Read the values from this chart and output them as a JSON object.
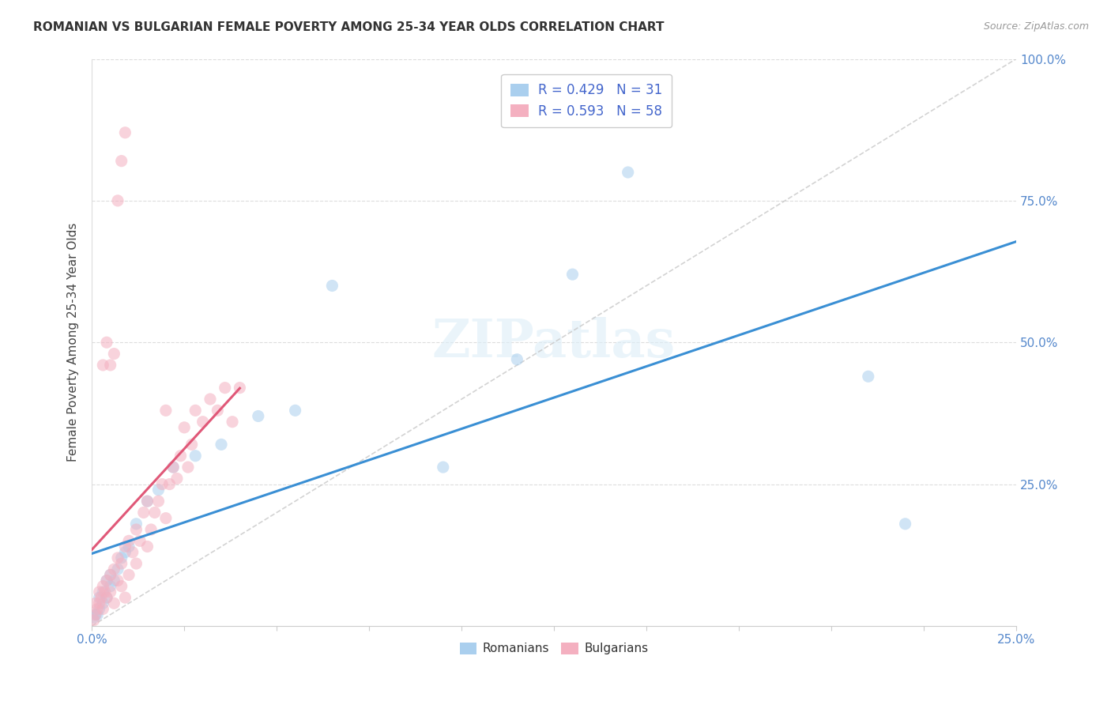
{
  "title": "ROMANIAN VS BULGARIAN FEMALE POVERTY AMONG 25-34 YEAR OLDS CORRELATION CHART",
  "source": "Source: ZipAtlas.com",
  "ylabel": "Female Poverty Among 25-34 Year Olds",
  "xlim": [
    0,
    0.25
  ],
  "ylim": [
    0,
    1.0
  ],
  "romanian_color": "#aacfee",
  "bulgarian_color": "#f4b0c0",
  "romanian_line_color": "#3a8fd4",
  "bulgarian_line_color": "#e05878",
  "reference_line_color": "#c8c8c8",
  "romanian_R": 0.429,
  "romanian_N": 31,
  "bulgarian_R": 0.593,
  "bulgarian_N": 58,
  "marker_size": 120,
  "marker_alpha": 0.55,
  "background_color": "#ffffff",
  "grid_color": "#dddddd",
  "rom_x": [
    0.0005,
    0.001,
    0.0015,
    0.002,
    0.002,
    0.003,
    0.003,
    0.004,
    0.004,
    0.005,
    0.005,
    0.006,
    0.007,
    0.008,
    0.009,
    0.01,
    0.012,
    0.015,
    0.018,
    0.022,
    0.028,
    0.035,
    0.045,
    0.055,
    0.065,
    0.095,
    0.13,
    0.145,
    0.21,
    0.22,
    0.115
  ],
  "rom_y": [
    0.015,
    0.02,
    0.02,
    0.03,
    0.05,
    0.04,
    0.06,
    0.05,
    0.08,
    0.07,
    0.09,
    0.08,
    0.1,
    0.12,
    0.13,
    0.14,
    0.18,
    0.22,
    0.24,
    0.28,
    0.3,
    0.32,
    0.37,
    0.38,
    0.6,
    0.28,
    0.62,
    0.8,
    0.44,
    0.18,
    0.47
  ],
  "bul_x": [
    0.0005,
    0.001,
    0.001,
    0.0015,
    0.002,
    0.002,
    0.0025,
    0.003,
    0.003,
    0.0035,
    0.004,
    0.004,
    0.005,
    0.005,
    0.006,
    0.006,
    0.007,
    0.007,
    0.008,
    0.008,
    0.009,
    0.009,
    0.01,
    0.01,
    0.011,
    0.012,
    0.012,
    0.013,
    0.014,
    0.015,
    0.015,
    0.016,
    0.017,
    0.018,
    0.019,
    0.02,
    0.021,
    0.022,
    0.023,
    0.024,
    0.025,
    0.026,
    0.027,
    0.028,
    0.03,
    0.032,
    0.034,
    0.036,
    0.038,
    0.04,
    0.003,
    0.004,
    0.005,
    0.006,
    0.007,
    0.008,
    0.009,
    0.02
  ],
  "bul_y": [
    0.01,
    0.02,
    0.04,
    0.03,
    0.04,
    0.06,
    0.05,
    0.07,
    0.03,
    0.06,
    0.05,
    0.08,
    0.06,
    0.09,
    0.04,
    0.1,
    0.08,
    0.12,
    0.07,
    0.11,
    0.05,
    0.14,
    0.09,
    0.15,
    0.13,
    0.11,
    0.17,
    0.15,
    0.2,
    0.14,
    0.22,
    0.17,
    0.2,
    0.22,
    0.25,
    0.19,
    0.25,
    0.28,
    0.26,
    0.3,
    0.35,
    0.28,
    0.32,
    0.38,
    0.36,
    0.4,
    0.38,
    0.42,
    0.36,
    0.42,
    0.46,
    0.5,
    0.46,
    0.48,
    0.75,
    0.82,
    0.87,
    0.38
  ]
}
